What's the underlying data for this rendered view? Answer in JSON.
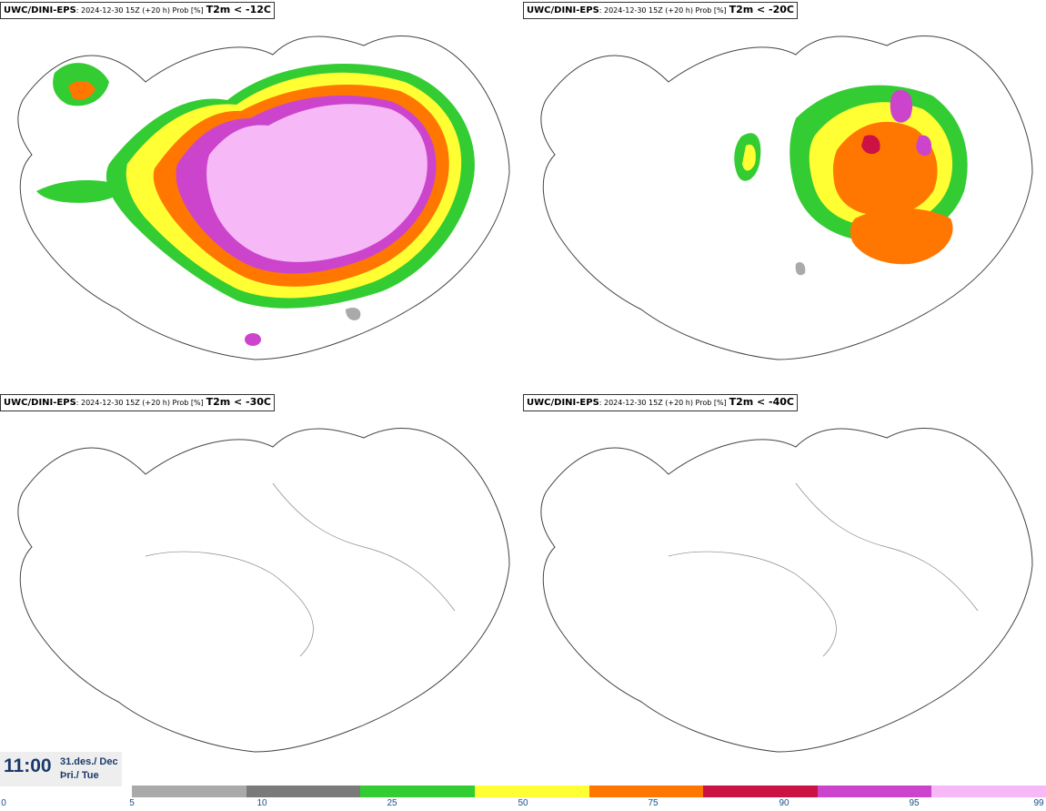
{
  "panels": [
    {
      "model": "UWC/DINI-EPS",
      "meta": ": 2024-12-30 15Z (+20 h) Prob [%]",
      "threshold": "T2m < -12C"
    },
    {
      "model": "UWC/DINI-EPS",
      "meta": ": 2024-12-30 15Z (+20 h) Prob [%]",
      "threshold": "T2m < -20C"
    },
    {
      "model": "UWC/DINI-EPS",
      "meta": ": 2024-12-30 15Z (+20 h) Prob [%]",
      "threshold": "T2m < -30C"
    },
    {
      "model": "UWC/DINI-EPS",
      "meta": ": 2024-12-30 15Z (+20 h) Prob [%]",
      "threshold": "T2m < -40C"
    }
  ],
  "timestamp": {
    "time": "11:00",
    "date_line1": "31.des./ Dec",
    "date_line2": "Þri./ Tue"
  },
  "legend": {
    "ticks": [
      "0",
      "5",
      "10",
      "25",
      "50",
      "75",
      "90",
      "95",
      "99"
    ],
    "colors": [
      "#aaaaaa",
      "#7a7a7a",
      "#33cc33",
      "#ffff33",
      "#ff7700",
      "#cc1144",
      "#cc44cc",
      "#f7b8f7"
    ]
  }
}
